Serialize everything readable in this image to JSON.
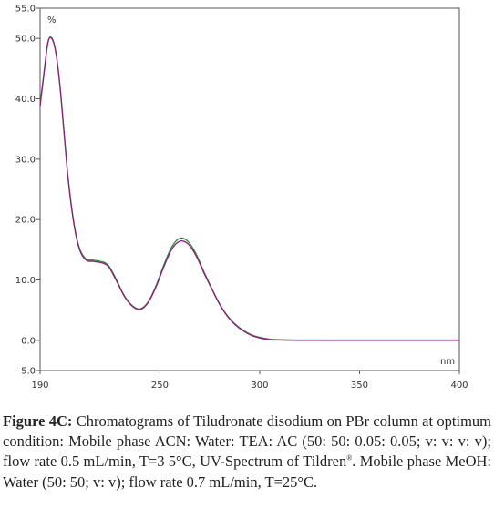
{
  "chart_data": {
    "type": "line",
    "y_unit_label": "%",
    "x_unit_label": "nm",
    "xlim": [
      190,
      400
    ],
    "ylim": [
      -5.0,
      55.0
    ],
    "x_ticks": [
      "190",
      "250",
      "300",
      "350",
      "400"
    ],
    "x_tick_values": [
      190,
      250,
      300,
      350,
      400
    ],
    "y_ticks": [
      "-5.0",
      "0.0",
      "10.0",
      "20.0",
      "30.0",
      "40.0",
      "50.0",
      "55.0"
    ],
    "y_tick_values": [
      -5,
      0,
      10,
      20,
      30,
      40,
      50,
      55
    ],
    "grid": false,
    "series": [
      {
        "color": "#2e8b3a",
        "x": [
          190,
          192,
          194,
          196,
          198,
          200,
          202,
          204,
          206,
          208,
          210,
          212,
          214,
          216,
          218,
          220,
          224,
          228,
          232,
          236,
          240,
          244,
          248,
          252,
          256,
          260,
          264,
          268,
          272,
          276,
          280,
          284,
          288,
          292,
          296,
          300,
          305,
          310,
          320,
          340,
          360,
          380,
          400
        ],
        "y": [
          39.0,
          44.5,
          49.5,
          50.0,
          47.5,
          42.0,
          34.5,
          27.0,
          21.5,
          17.5,
          15.0,
          13.8,
          13.3,
          13.3,
          13.2,
          13.1,
          12.5,
          10.2,
          7.5,
          5.8,
          5.2,
          6.3,
          9.0,
          12.5,
          15.5,
          16.9,
          16.4,
          14.4,
          11.4,
          8.6,
          6.0,
          4.0,
          2.6,
          1.6,
          0.9,
          0.5,
          0.2,
          0.1,
          0.05,
          0.05,
          0.05,
          0.05,
          0.05
        ]
      },
      {
        "color": "#8a1f7a",
        "x": [
          190,
          192,
          194,
          196,
          198,
          200,
          202,
          204,
          206,
          208,
          210,
          212,
          214,
          216,
          218,
          220,
          224,
          228,
          232,
          236,
          240,
          244,
          248,
          252,
          256,
          260,
          264,
          268,
          272,
          276,
          280,
          284,
          288,
          292,
          296,
          300,
          305,
          310,
          320,
          340,
          360,
          380,
          400
        ],
        "y": [
          38.8,
          44.3,
          49.4,
          49.9,
          47.4,
          41.9,
          34.3,
          26.8,
          21.3,
          17.3,
          14.8,
          13.6,
          13.1,
          13.1,
          13.0,
          12.9,
          12.3,
          10.0,
          7.4,
          5.7,
          5.1,
          6.2,
          8.8,
          12.2,
          15.1,
          16.4,
          16.0,
          14.1,
          11.2,
          8.5,
          5.9,
          3.9,
          2.5,
          1.5,
          0.8,
          0.4,
          0.1,
          0.05,
          0.0,
          0.0,
          0.0,
          0.0,
          0.0
        ]
      }
    ]
  },
  "caption": {
    "figure_label": "Figure 4C:",
    "text_part1": " Chromatograms of Tiludronate disodium on PBr column at optimum condition: Mobile phase ACN: Water: TEA: AC (50: 50: 0.05: 0.05; v: v: v: v); flow rate 0.5 mL/min, T=3 5°C, UV-Spectrum of Tildren",
    "superscript": "®",
    "text_part2": ". Mobile phase MeOH: Water (50: 50; v: v); flow rate 0.7 mL/min, T=25°C."
  }
}
